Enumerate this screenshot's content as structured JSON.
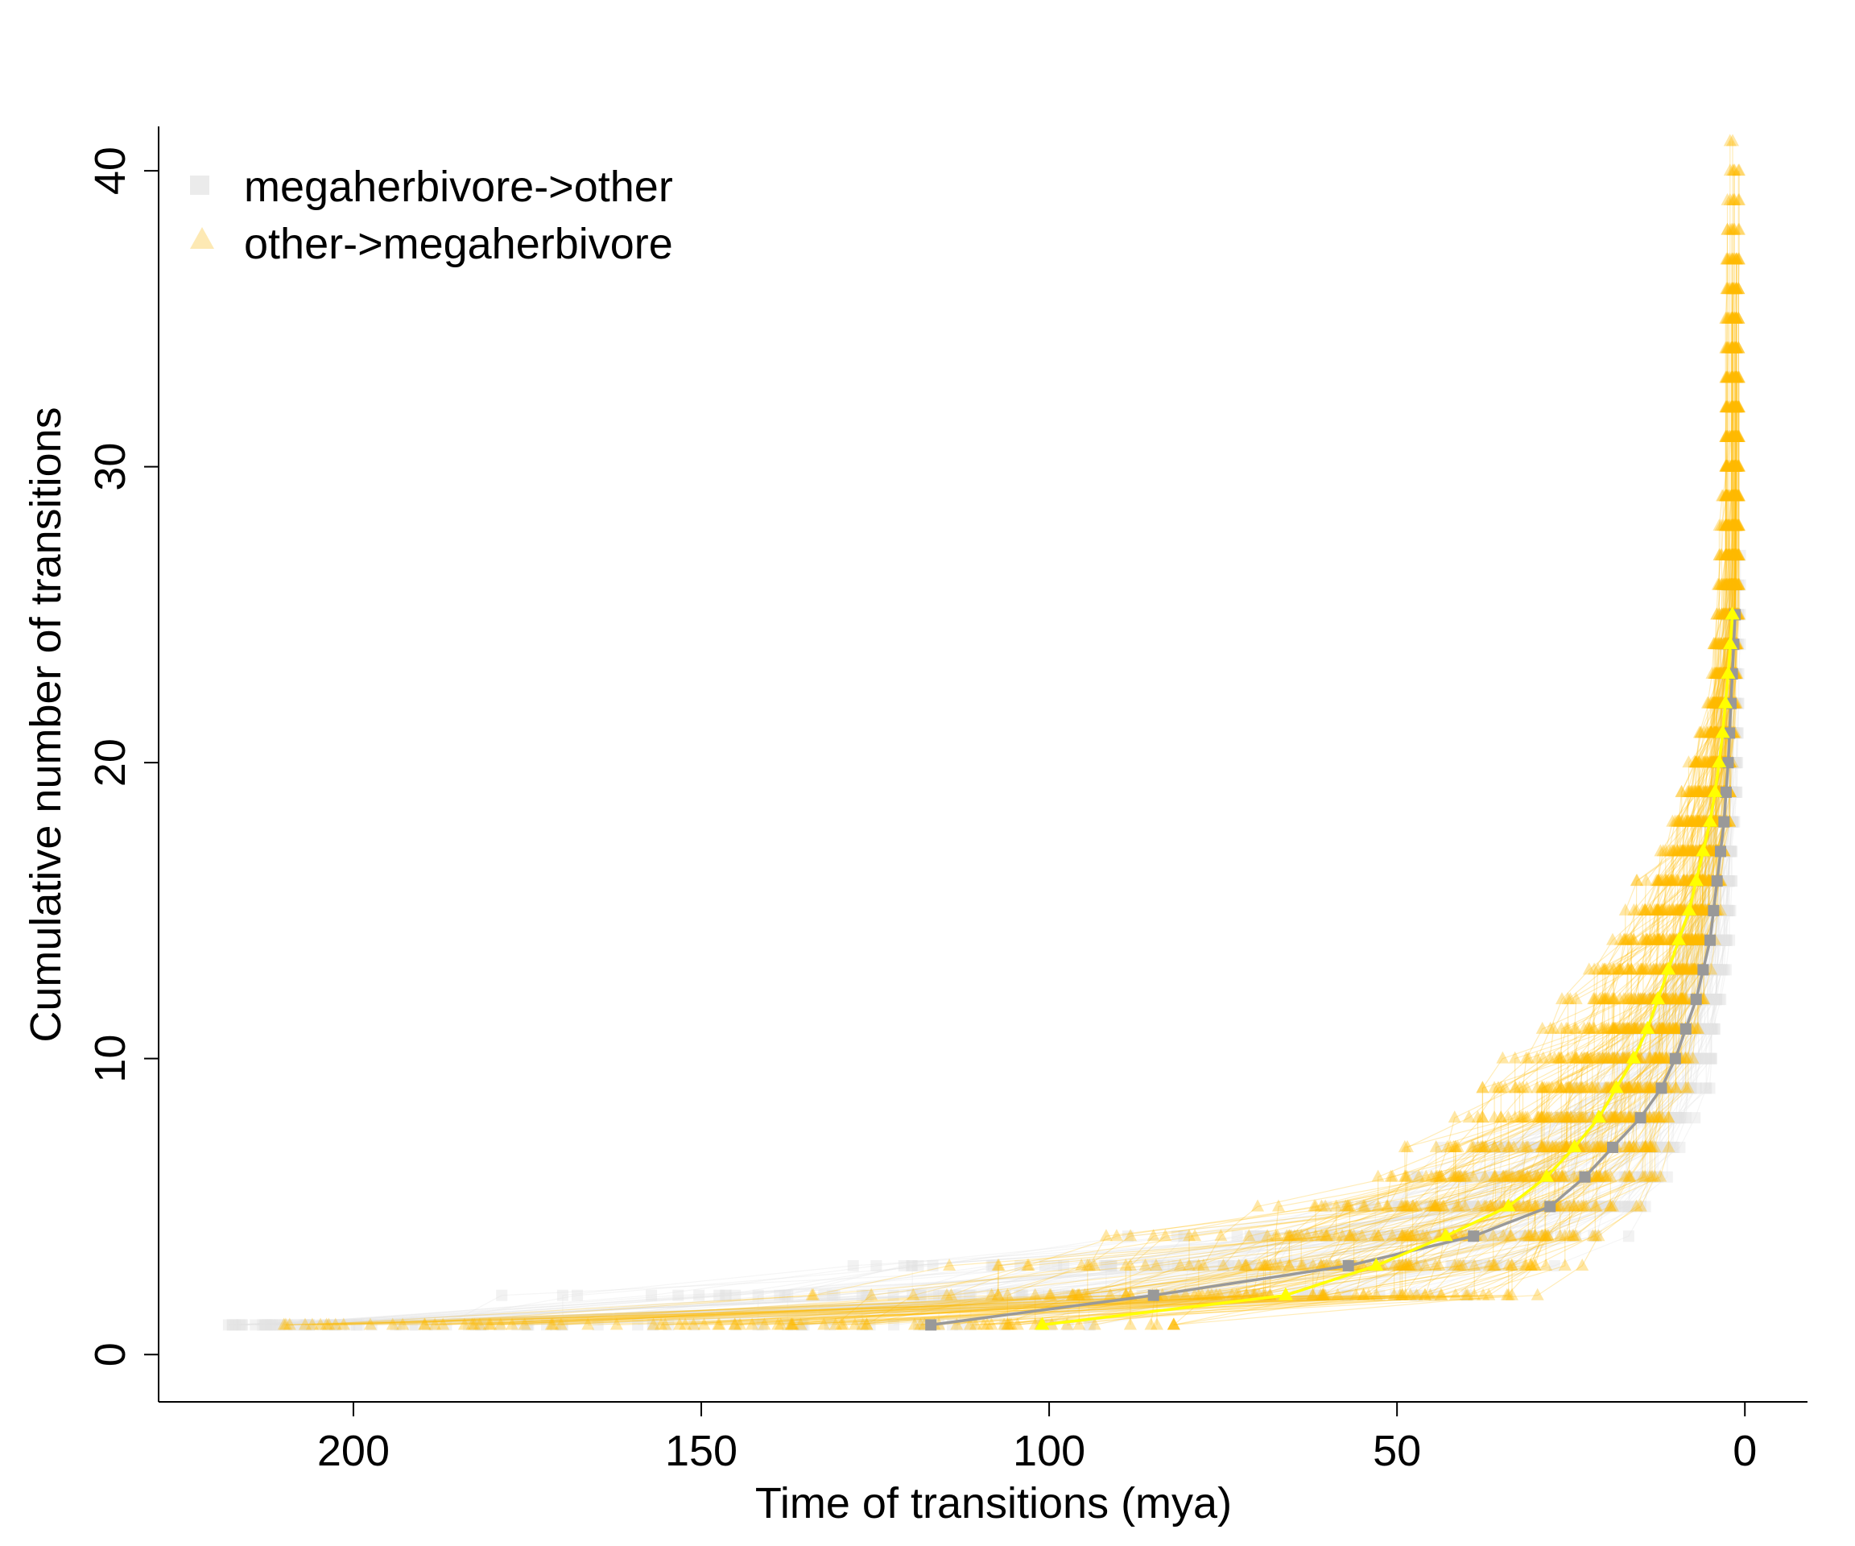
{
  "chart_data": {
    "type": "line",
    "xlabel": "Time of transitions (mya)",
    "ylabel": "Cumulative number of transitions",
    "x_reversed": true,
    "xlim": [
      228,
      -9
    ],
    "ylim": [
      -1.6,
      41.5
    ],
    "x_ticks": [
      "200",
      "150",
      "100",
      "50",
      "0"
    ],
    "y_ticks": [
      "0",
      "10",
      "20",
      "30",
      "40"
    ],
    "legend": {
      "position": "top-left",
      "entries": [
        {
          "label": "megaherbivore->other",
          "marker": "square",
          "color": "#e6e6e6"
        },
        {
          "label": "other->megaherbivore",
          "marker": "triangle",
          "color": "#fde9b4"
        }
      ]
    },
    "series": [
      {
        "name": "megaherbivore->other",
        "marker": "square",
        "color": "#999999",
        "x": [
          117,
          85,
          57,
          39,
          28,
          23,
          19,
          15,
          12,
          10,
          8.5,
          7,
          6,
          5,
          4.5,
          4,
          3.5,
          3,
          2.7,
          2.4,
          2.2,
          2.0,
          1.8,
          1.6,
          1.4
        ],
        "y": [
          1,
          2,
          3,
          4,
          5,
          6,
          7,
          8,
          9,
          10,
          11,
          12,
          13,
          14,
          15,
          16,
          17,
          18,
          19,
          20,
          21,
          22,
          23,
          24,
          25
        ]
      },
      {
        "name": "other->megaherbivore",
        "marker": "triangle",
        "color": "#ffff00",
        "x": [
          101,
          66,
          53,
          43,
          34,
          28.5,
          24.5,
          21,
          18.5,
          16,
          14,
          12.5,
          11,
          9.5,
          8,
          7,
          6,
          5,
          4.3,
          3.7,
          3.2,
          2.8,
          2.4,
          2.1,
          1.8
        ],
        "y": [
          1,
          2,
          3,
          4,
          5,
          6,
          7,
          8,
          9,
          10,
          11,
          12,
          13,
          14,
          15,
          16,
          17,
          18,
          19,
          20,
          21,
          22,
          23,
          24,
          25
        ]
      }
    ],
    "colors": {
      "sample_gray": "#e3e3e3",
      "sample_orange": "#ffbb00",
      "axis": "#000000"
    }
  }
}
